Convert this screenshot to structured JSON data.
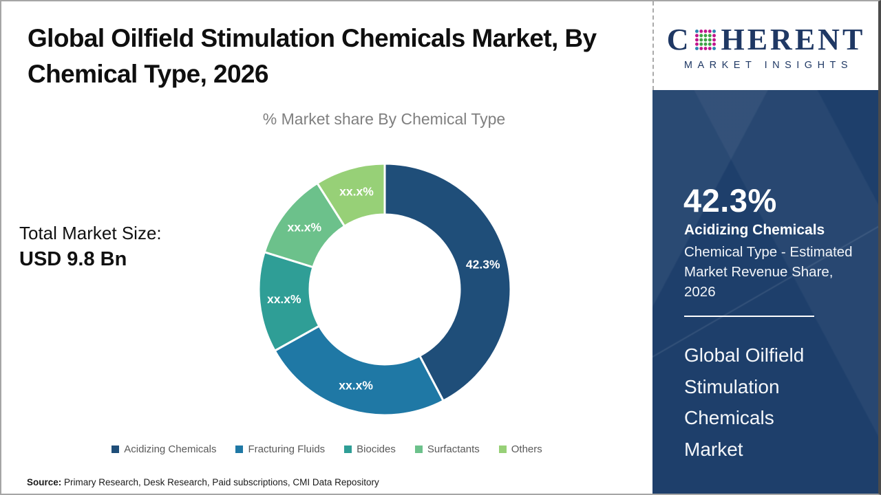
{
  "header": {
    "title_lines": [
      "Global Oilfield Stimulation Chemicals Market, By",
      "Chemical Type, 2026"
    ],
    "full_title": "Global Oilfield Stimulation Chemicals Market, By Chemical Type, 2026"
  },
  "logo": {
    "c": "C",
    "rest": "HERENT",
    "tagline": "MARKET INSIGHTS",
    "brand_navy": "#1F3864",
    "globe_green": "#3FA447",
    "globe_magenta": "#C0168C",
    "globe_blue": "#2C86B0"
  },
  "total_market": {
    "label": "Total Market Size:",
    "value": "USD 9.8 Bn"
  },
  "chart_data": {
    "type": "pie",
    "subtype": "donut",
    "title": "% Market share By Chemical Type",
    "categories": [
      "Acidizing Chemicals",
      "Fracturing Fluids",
      "Biocides",
      "Surfactants",
      "Others"
    ],
    "labels_displayed": [
      "42.3%",
      "xx.x%",
      "xx.x%",
      "xx.x%",
      "xx.x%"
    ],
    "values_pct_estimated": [
      42.3,
      24.6,
      12.9,
      11.2,
      9.0
    ],
    "colors": [
      "#1F4E79",
      "#1F78A5",
      "#2F9E96",
      "#6CC18B",
      "#97D077"
    ],
    "start_angle_deg": 0,
    "direction": "clockwise",
    "inner_radius_ratio": 0.6,
    "separator_color": "#FFFFFF",
    "label_color": "#FFFFFF",
    "legend_position": "bottom"
  },
  "sidebar": {
    "share_value": "42.3%",
    "segment": "Acidizing Chemicals",
    "desc_lines": [
      "Chemical Type - Estimated",
      "Market Revenue Share,",
      "2026"
    ],
    "product_lines": [
      "Global Oilfield",
      "Stimulation",
      "Chemicals",
      "Market"
    ],
    "bg_color": "#1E3F6B"
  },
  "source": {
    "prefix": "Source:",
    "text": "Primary Research, Desk Research, Paid subscriptions, CMI Data Repository"
  }
}
